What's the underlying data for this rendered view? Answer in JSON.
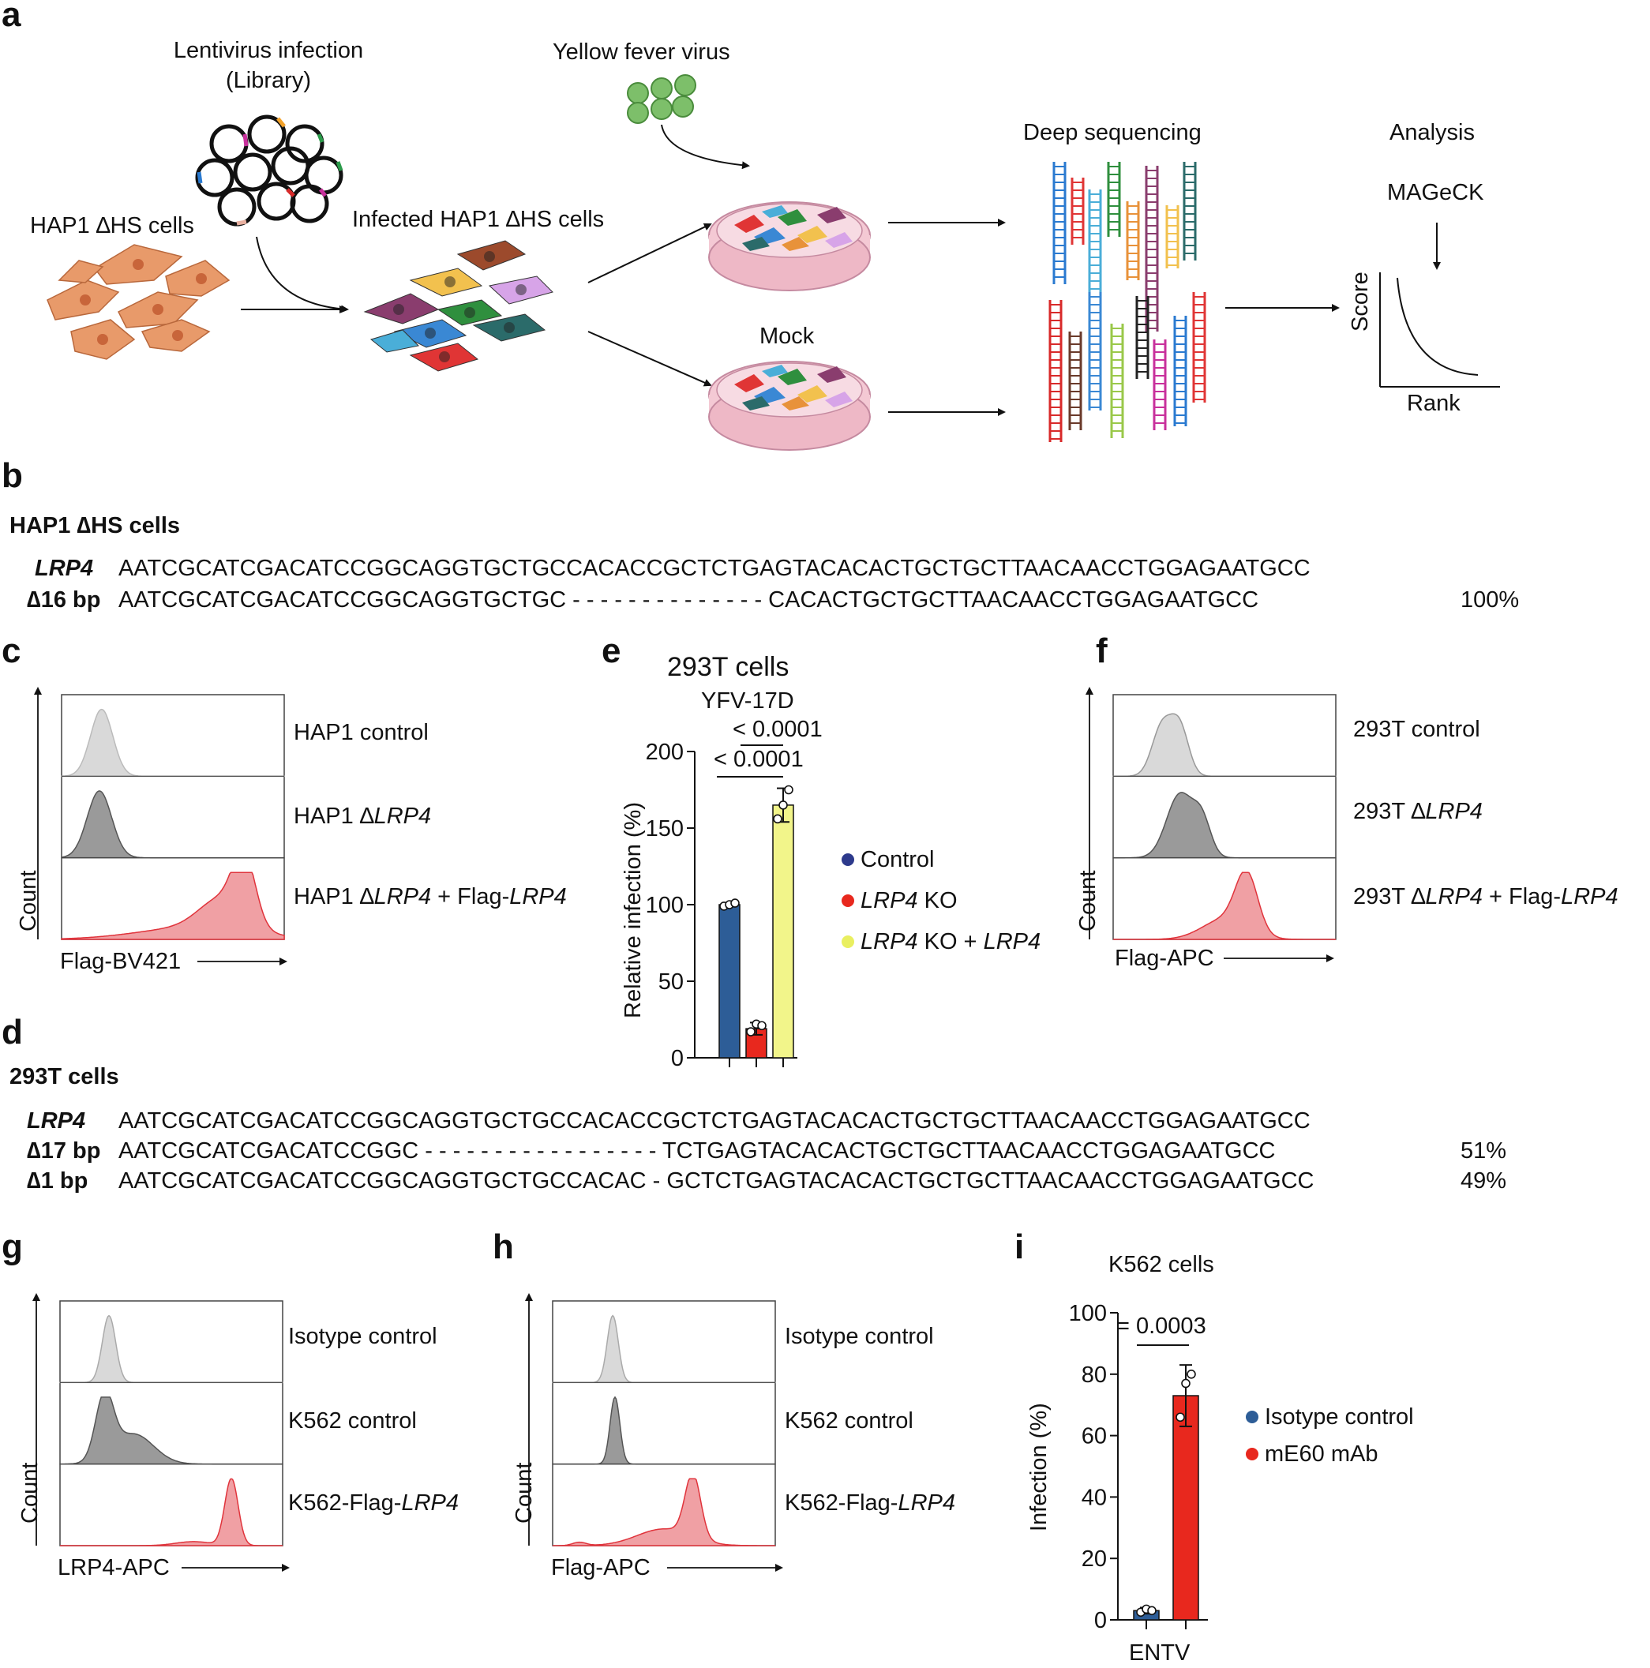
{
  "panels": {
    "a": "a",
    "b": "b",
    "c": "c",
    "d": "d",
    "e": "e",
    "f": "f",
    "g": "g",
    "h": "h",
    "i": "i"
  },
  "a": {
    "lentivirus": [
      "Lentivirus infection",
      "(Library)"
    ],
    "hap1": "HAP1 ∆HS cells",
    "infected": "Infected HAP1 ∆HS cells",
    "yfv": "Yellow fever virus",
    "mock": "Mock",
    "deepseq": "Deep sequencing",
    "analysis": "Analysis",
    "mageck": "MAGeCK",
    "score": "Score",
    "rank": "Rank"
  },
  "b": {
    "title": "HAP1 ∆HS cells",
    "rows": [
      {
        "label": "LRP4",
        "italic": true,
        "seq": "AATCGCATCGACATCCGGCAGGTGCTGCCACACCGCTCTGAGTACACACTGCTGCTTAACAACCTGGAGAATGCC",
        "pct": ""
      },
      {
        "label": "∆16 bp",
        "italic": false,
        "seq": "AATCGCATCGACATCCGGCAGGTGCTGC - - - - - - - - - - - - - - CACACTGCTGCTTAACAACCTGGAGAATGCC",
        "pct": "100%"
      }
    ]
  },
  "d": {
    "title": "293T cells",
    "rows": [
      {
        "label": "LRP4",
        "italic": true,
        "seq": "AATCGCATCGACATCCGGCAGGTGCTGCCACACCGCTCTGAGTACACACTGCTGCTTAACAACCTGGAGAATGCC",
        "pct": ""
      },
      {
        "label": "∆17 bp",
        "italic": false,
        "seq": "AATCGCATCGACATCCGGC - - - - - - - - - - - - - - - - - TCTGAGTACACACTGCTGCTTAACAACCTGGAGAATGCC",
        "pct": "51%"
      },
      {
        "label": "∆1 bp",
        "italic": false,
        "seq": "AATCGCATCGACATCCGGCAGGTGCTGCCACAC - GCTCTGAGTACACACTGCTGCTTAACAACCTGGAGAATGCC",
        "pct": "49%"
      }
    ]
  },
  "c": {
    "count": "Count",
    "xlabel": "Flag-BV421",
    "rows": [
      {
        "html": "HAP1 control"
      },
      {
        "html": "HAP1 ∆<i>LRP4</i>"
      },
      {
        "html": "HAP1 ∆<i>LRP4</i> + Flag-<i>LRP4</i>"
      }
    ]
  },
  "f": {
    "count": "Count",
    "xlabel": "Flag-APC",
    "rows": [
      {
        "html": "293T control"
      },
      {
        "html": "293T ∆<i>LRP4</i>"
      },
      {
        "html": "293T ∆<i>LRP4</i> + Flag-<i>LRP4</i>"
      }
    ]
  },
  "g": {
    "count": "Count",
    "xlabel": "LRP4-APC",
    "rows": [
      {
        "html": "Isotype control"
      },
      {
        "html": "K562 control"
      },
      {
        "html": "K562-Flag-<i>LRP4</i>"
      }
    ]
  },
  "h": {
    "count": "Count",
    "xlabel": "Flag-APC",
    "rows": [
      {
        "html": "Isotype control"
      },
      {
        "html": "K562 control"
      },
      {
        "html": "K562-Flag-<i>LRP4</i>"
      }
    ]
  },
  "colors": {
    "gray_light": "#d9d9d9",
    "gray_dark": "#9a9a9a",
    "red_fill": "#f0a0a4",
    "red_line": "#e0343c",
    "blue_bar": "#2d5d97",
    "red_bar": "#e8281e",
    "yellow_bar": "#f2f58a"
  },
  "chart_data": [
    {
      "type": "bar",
      "panel": "e",
      "title": "293T cells",
      "subtitle": "YFV-17D",
      "ylabel": "Relative infection (%)",
      "ylim": [
        0,
        200
      ],
      "yticks": [
        "0",
        "50",
        "100",
        "150",
        "200"
      ],
      "categories": [
        "Control",
        "LRP4 KO",
        "LRP4 KO + LRP4"
      ],
      "legend": [
        {
          "html": "Control",
          "color": "#2d3a8c"
        },
        {
          "html": "<i>LRP4</i> KO",
          "color": "#e8281e"
        },
        {
          "html": "<i>LRP4</i> KO + <i>LRP4</i>",
          "color": "#e9ef60"
        }
      ],
      "values": [
        100,
        19,
        165
      ],
      "errors": [
        1,
        4,
        11
      ],
      "points": [
        [
          99,
          100,
          101
        ],
        [
          17,
          22,
          21
        ],
        [
          156,
          165,
          175
        ]
      ],
      "pvalues": [
        "< 0.0001",
        "< 0.0001"
      ]
    },
    {
      "type": "bar",
      "panel": "i",
      "title": "K562 cells",
      "ylabel": "Infection (%)",
      "xlabel": "ENTV",
      "ylim": [
        0,
        100
      ],
      "yticks": [
        "0",
        "20",
        "40",
        "60",
        "80",
        "100"
      ],
      "categories": [
        "Isotype control",
        "mE60 mAb"
      ],
      "legend": [
        {
          "html": "Isotype control",
          "color": "#2d5d97"
        },
        {
          "html": "mE60 mAb",
          "color": "#e8281e"
        }
      ],
      "values": [
        3,
        73
      ],
      "errors": [
        1,
        10
      ],
      "points": [
        [
          2.5,
          3.5,
          3
        ],
        [
          66,
          77,
          80
        ]
      ],
      "pvalue": "= 0.0003"
    }
  ]
}
